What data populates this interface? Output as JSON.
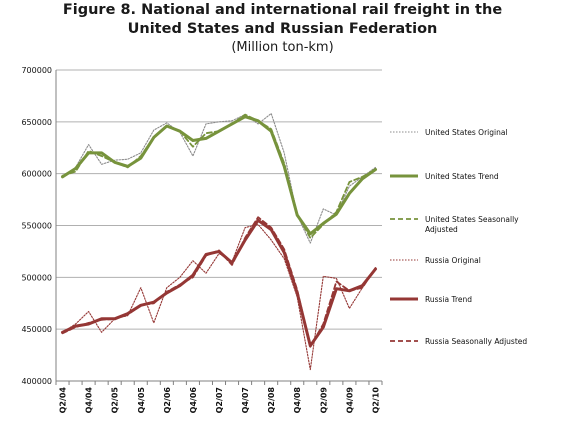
{
  "title_line1": "Figure 8.  National and international rail freight in the",
  "title_line2": "United States and Russian Federation",
  "subtitle": "(Million ton-km)",
  "colors": {
    "us": "#77933c",
    "russia": "#953735",
    "original": "#8c8c8c",
    "grid": "#b0b0b0"
  },
  "chart_data": {
    "type": "line",
    "title": "National and international rail freight in the United States and Russian Federation",
    "subtitle": "(Million ton-km)",
    "ylim": [
      400000,
      700000
    ],
    "yticks": [
      400000,
      450000,
      500000,
      550000,
      600000,
      650000,
      700000
    ],
    "ytick_labels": [
      "400000",
      "450000",
      "500000",
      "550000",
      "600000",
      "650000",
      "700000"
    ],
    "x": [
      "Q2/04",
      "Q3/04",
      "Q4/04",
      "Q1/05",
      "Q2/05",
      "Q3/05",
      "Q4/05",
      "Q1/06",
      "Q2/06",
      "Q3/06",
      "Q4/06",
      "Q1/07",
      "Q2/07",
      "Q3/07",
      "Q4/07",
      "Q1/08",
      "Q2/08",
      "Q3/08",
      "Q4/08",
      "Q1/09",
      "Q2/09",
      "Q3/09",
      "Q4/09",
      "Q1/10",
      "Q2/10"
    ],
    "xtick_labels": [
      "Q2/04",
      "Q4/04",
      "Q2/05",
      "Q4/05",
      "Q2/06",
      "Q4/06",
      "Q2/07",
      "Q4/07",
      "Q2/08",
      "Q4/08",
      "Q2/09",
      "Q4/09",
      "Q2/10"
    ],
    "legend_position": "right",
    "grid": true,
    "series": [
      {
        "name": "United States Original",
        "style": "dotted-gray",
        "values": [
          597000,
          606000,
          628000,
          609000,
          613000,
          614000,
          620000,
          642000,
          649000,
          640000,
          617000,
          648000,
          650000,
          651000,
          657000,
          648000,
          658000,
          620000,
          560000,
          533000,
          566000,
          560000,
          588000,
          597000,
          606000
        ]
      },
      {
        "name": "United States Trend",
        "style": "solid-green",
        "values": [
          597000,
          605000,
          620000,
          620000,
          611000,
          607000,
          615000,
          635000,
          646000,
          641000,
          632000,
          634000,
          641000,
          648000,
          655000,
          651000,
          641000,
          607000,
          560000,
          542000,
          552000,
          561000,
          581000,
          595000,
          604000
        ]
      },
      {
        "name": "United States Seasonally Adjusted",
        "style": "dashed-green",
        "values": [
          598000,
          602000,
          622000,
          617000,
          611000,
          606000,
          617000,
          635000,
          646000,
          641000,
          626000,
          639000,
          641000,
          648000,
          657000,
          651000,
          643000,
          610000,
          561000,
          538000,
          551000,
          563000,
          592000,
          597000,
          604000
        ]
      },
      {
        "name": "Russia Original",
        "style": "dotted-red",
        "values": [
          447000,
          455000,
          467000,
          447000,
          460000,
          463000,
          490000,
          456000,
          490000,
          500000,
          516000,
          504000,
          523000,
          515000,
          548000,
          551000,
          536000,
          518000,
          481000,
          411000,
          501000,
          499000,
          470000,
          490000,
          508000
        ]
      },
      {
        "name": "Russia Trend",
        "style": "solid-red",
        "values": [
          447000,
          453000,
          455000,
          460000,
          460000,
          465000,
          473000,
          476000,
          485000,
          492000,
          502000,
          522000,
          525000,
          514000,
          536000,
          555000,
          546000,
          524000,
          485000,
          434000,
          452000,
          489000,
          487000,
          492000,
          508000
        ]
      },
      {
        "name": "Russia Seasonally Adjusted",
        "style": "dashed-red",
        "values": [
          446000,
          452000,
          456000,
          459000,
          460000,
          464000,
          473000,
          475000,
          486000,
          493000,
          500000,
          521000,
          526000,
          512000,
          538000,
          558000,
          548000,
          527000,
          488000,
          433000,
          455000,
          496000,
          487000,
          490000,
          509000
        ]
      }
    ]
  }
}
